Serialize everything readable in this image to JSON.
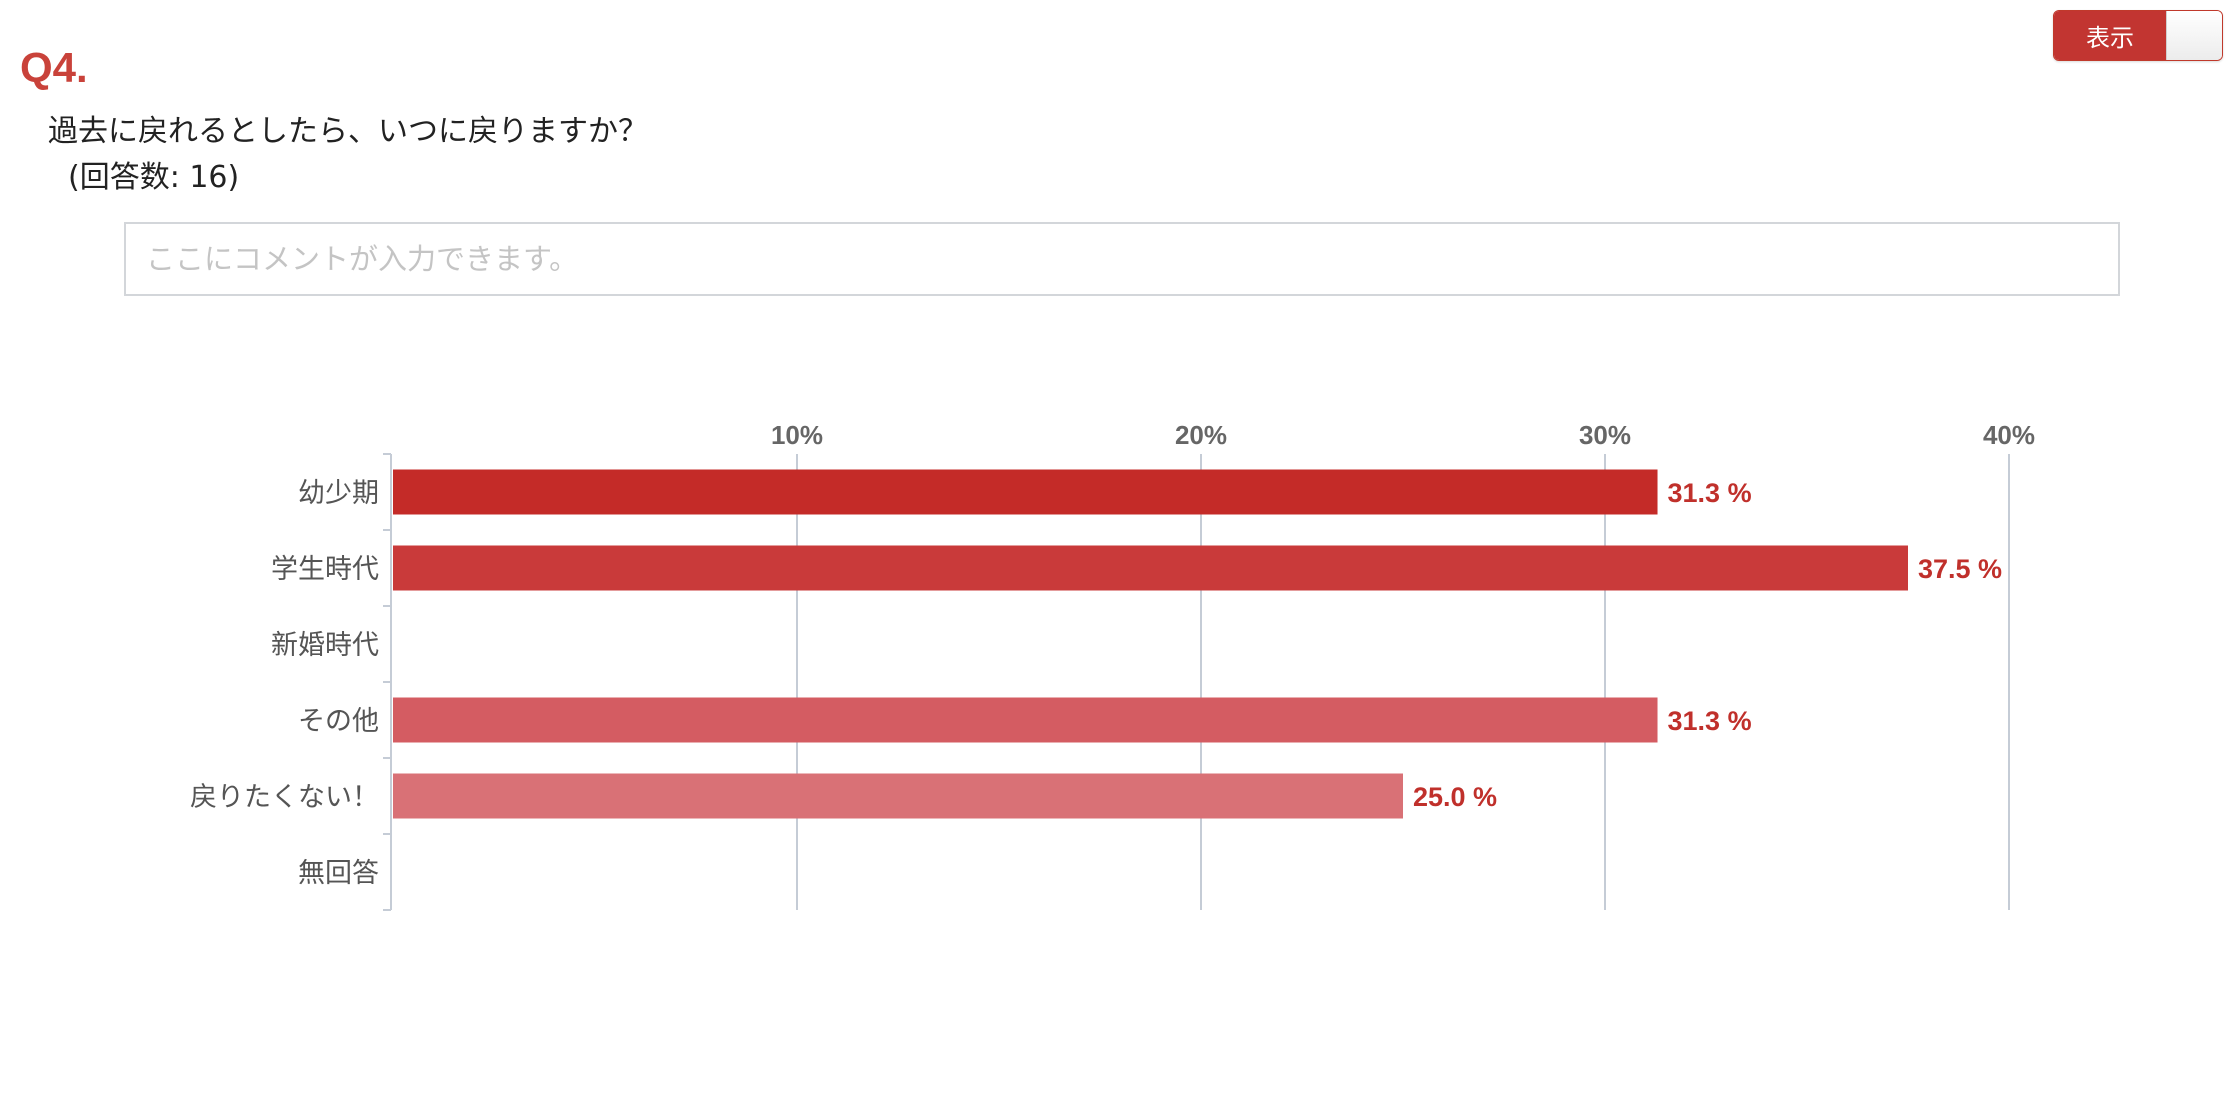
{
  "toggle": {
    "label": "表示"
  },
  "question": {
    "number": "Q4.",
    "title": "過去に戻れるとしたら、いつに戻りますか？",
    "count": "(回答数: 16)"
  },
  "comment": {
    "placeholder": "ここにコメントが入力できます。"
  },
  "colors": {
    "accent": "#c9423a",
    "bars": [
      "#c42b28",
      "#c93a3a",
      "#cd4848",
      "#d45c62",
      "#d97176",
      "#de8488"
    ],
    "value_label": "#c0302b",
    "grid": "#c5ccd6"
  },
  "chart_data": {
    "type": "bar",
    "orientation": "horizontal",
    "categories": [
      "幼少期",
      "学生時代",
      "新婚時代",
      "その他",
      "戻りたくない！",
      "無回答"
    ],
    "values": [
      31.3,
      37.5,
      0,
      31.3,
      25.0,
      0
    ],
    "value_labels": [
      "31.3 %",
      "37.5 %",
      "",
      "31.3 %",
      "25.0 %",
      ""
    ],
    "ticks": [
      10,
      20,
      30,
      40
    ],
    "tick_labels": [
      "10%",
      "20%",
      "30%",
      "40%"
    ],
    "xlim": [
      0,
      40
    ],
    "grid": true,
    "axis_position": "top"
  }
}
